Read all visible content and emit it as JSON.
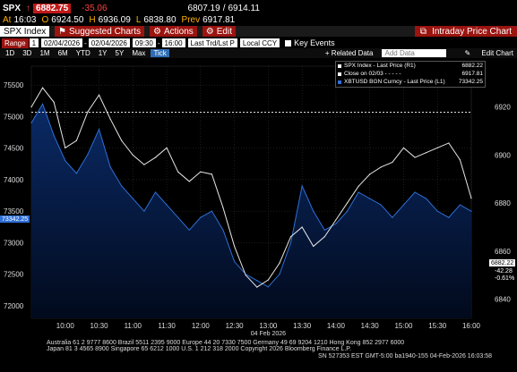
{
  "quote": {
    "ticker": "SPX",
    "arrow": "↑",
    "last": "6882.75",
    "change": "-35.06",
    "bid_ask": "6807.19",
    "high_low": "6914.11"
  },
  "quote2": {
    "at_label": "At",
    "time": "16:03",
    "o_label": "O",
    "open": "6924.50",
    "h_label": "H",
    "high": "6936.09",
    "l_label": "L",
    "low": "6838.80",
    "prev_label": "Prev",
    "prev": "6917.81"
  },
  "toolbar": {
    "security": "SPX Index",
    "suggested": "Suggested Charts",
    "actions": "Actions",
    "edit": "Edit",
    "screen_title": "Intraday Price Chart"
  },
  "range_bar": {
    "range_label": "Range",
    "range_num": "1",
    "start_date": "02/04/2026",
    "end_date": "02/04/2026",
    "start_time": "09:30",
    "end_time": "16:00",
    "bar_type": "Last Trd/Lst P",
    "ccy": "Local CCY",
    "key_events": "Key Events"
  },
  "periods": [
    "1D",
    "3D",
    "1M",
    "6M",
    "YTD",
    "1Y",
    "5Y",
    "Max"
  ],
  "period_active": "Tick",
  "chart_tools": {
    "related": "+ Related Data",
    "add_data": "Add Data",
    "edit_chart": "Edit Chart"
  },
  "legend": [
    {
      "label": "SPX Index - Last Price (R1)",
      "value": "6882.22",
      "color": "#ffffff"
    },
    {
      "label": "Close on 02/03 - - - - -",
      "value": "6917.81",
      "color": "#ffffff"
    },
    {
      "label": "XBTUSD BGN Curncy - Last Price (L1)",
      "value": "73342.25",
      "color": "#2f6fd6"
    }
  ],
  "right_tags": {
    "last": "6882.22",
    "chg": "-42.28",
    "pct": "-0.61%"
  },
  "left_tag": "73342.25",
  "date_label": "04 Feb 2026",
  "footer": {
    "line1": "Australia 61 2 9777 8600 Brazil 5511 2395 9000 Europe 44 20 7330 7500 Germany 49 69 9204 1210 Hong Kong 852 2977 6000",
    "line2": "Japan 81 3 4565 8900          Singapore 65 6212 1000          U.S. 1 212 318 2000          Copyright 2026 Bloomberg Finance L.P.",
    "line3": "SN 527353 EST  GMT-5:00 ba1940-155 04-Feb-2026 16:03:58"
  },
  "colors": {
    "area_top": "#0a2a66",
    "area_bottom": "#020a1c",
    "btc": "#2f6fd6",
    "spx": "#e6e6e6",
    "accent": "#9b1410"
  },
  "chart_data": {
    "type": "line",
    "x_ticks": [
      "10:00",
      "10:30",
      "11:00",
      "11:30",
      "12:00",
      "12:30",
      "13:00",
      "13:30",
      "14:00",
      "14:30",
      "15:00",
      "15:30",
      "16:00"
    ],
    "left_axis": {
      "ticks": [
        72000,
        72500,
        73000,
        73500,
        74000,
        74500,
        75000,
        75500
      ],
      "ylim": [
        71800,
        75800
      ]
    },
    "right_axis": {
      "ticks": [
        6840,
        6860,
        6880,
        6900,
        6920
      ],
      "ylim": [
        6832,
        6937
      ]
    },
    "series": [
      {
        "name": "XBTUSD BGN Curncy - Last Price (L1)",
        "axis": "left",
        "x": [
          "09:30",
          "09:40",
          "09:50",
          "10:00",
          "10:10",
          "10:20",
          "10:30",
          "10:40",
          "10:50",
          "11:00",
          "11:10",
          "11:20",
          "11:30",
          "11:40",
          "11:50",
          "12:00",
          "12:10",
          "12:20",
          "12:30",
          "12:40",
          "12:50",
          "13:00",
          "13:10",
          "13:20",
          "13:30",
          "13:40",
          "13:50",
          "14:00",
          "14:10",
          "14:20",
          "14:30",
          "14:40",
          "14:50",
          "15:00",
          "15:10",
          "15:20",
          "15:30",
          "15:40",
          "15:50",
          "16:00"
        ],
        "values": [
          74900,
          75200,
          74700,
          74300,
          74100,
          74400,
          74800,
          74200,
          73900,
          73700,
          73500,
          73800,
          73600,
          73400,
          73200,
          73400,
          73500,
          73200,
          72700,
          72500,
          72400,
          72300,
          72500,
          73000,
          73900,
          73500,
          73200,
          73300,
          73500,
          73800,
          73700,
          73600,
          73400,
          73600,
          73800,
          73700,
          73500,
          73400,
          73600,
          73500
        ]
      },
      {
        "name": "SPX Index - Last Price (R1)",
        "axis": "right",
        "x": [
          "09:30",
          "09:40",
          "09:50",
          "10:00",
          "10:10",
          "10:20",
          "10:30",
          "10:40",
          "10:50",
          "11:00",
          "11:10",
          "11:20",
          "11:30",
          "11:40",
          "11:50",
          "12:00",
          "12:10",
          "12:20",
          "12:30",
          "12:40",
          "12:50",
          "13:00",
          "13:10",
          "13:20",
          "13:30",
          "13:40",
          "13:50",
          "14:00",
          "14:10",
          "14:20",
          "14:30",
          "14:40",
          "14:50",
          "15:00",
          "15:10",
          "15:20",
          "15:30",
          "15:40",
          "15:50",
          "16:00"
        ],
        "values": [
          6920,
          6928,
          6922,
          6903,
          6906,
          6918,
          6925,
          6915,
          6906,
          6900,
          6896,
          6899,
          6903,
          6893,
          6889,
          6893,
          6892,
          6878,
          6862,
          6850,
          6845,
          6848,
          6855,
          6866,
          6870,
          6862,
          6866,
          6873,
          6880,
          6887,
          6892,
          6895,
          6897,
          6903,
          6899,
          6901,
          6903,
          6905,
          6898,
          6882
        ]
      }
    ],
    "reference_line": {
      "name": "Close on 02/03",
      "value": 6917.81,
      "axis": "right"
    }
  }
}
